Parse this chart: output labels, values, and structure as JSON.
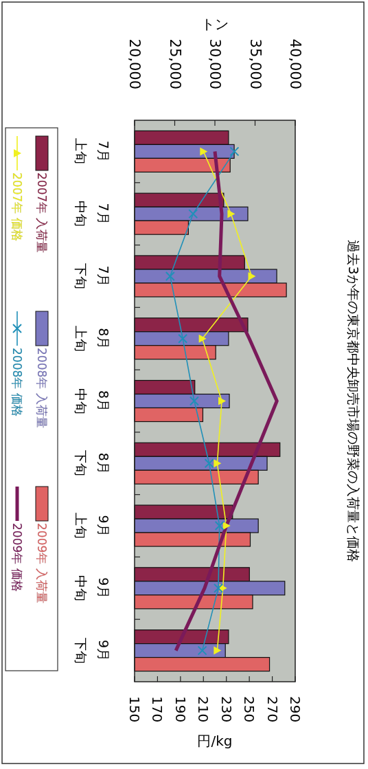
{
  "chart_data": {
    "type": "bar",
    "orientation": "horizontal",
    "title": "過去3か年の東京都中央卸売市場の野菜の入荷量と価格",
    "x2label": "トン",
    "xlabel": "円/kg",
    "categories": [
      "7月上旬",
      "7月中旬",
      "7月下旬",
      "8月上旬",
      "8月中旬",
      "8月下旬",
      "9月上旬",
      "9月中旬",
      "9月下旬"
    ],
    "x2lim": [
      20000,
      40000
    ],
    "x2ticks": [
      {
        "value": 20000,
        "label": "20,000"
      },
      {
        "value": 25000,
        "label": "25,000"
      },
      {
        "value": 30000,
        "label": "30,000"
      },
      {
        "value": 35000,
        "label": "35,000"
      },
      {
        "value": 40000,
        "label": "40,000"
      }
    ],
    "xlim": [
      150,
      290
    ],
    "xticks": [
      150,
      170,
      190,
      210,
      230,
      250,
      270,
      290
    ],
    "grid": false,
    "legend": "left",
    "series": [
      {
        "name": "2007年 入荷量",
        "axis": "x2",
        "color": "#8c2448",
        "values": [
          31700,
          31100,
          33700,
          34100,
          27500,
          38100,
          32200,
          34300,
          31700
        ]
      },
      {
        "name": "2008年 入荷量",
        "axis": "x2",
        "color": "#7b78c0",
        "values": [
          32400,
          34100,
          37700,
          31700,
          31800,
          36500,
          35400,
          38700,
          31300
        ]
      },
      {
        "name": "2009年 入荷量",
        "axis": "x2",
        "color": "#e06464",
        "values": [
          31900,
          26700,
          38900,
          30100,
          28500,
          35400,
          34400,
          34700,
          36800
        ]
      },
      {
        "name": "2007年 価格",
        "type": "line",
        "marker": "triangle",
        "color": "#f0f020",
        "values": [
          210,
          234,
          252,
          209,
          226,
          222,
          230,
          227,
          222
        ]
      },
      {
        "name": "2008年 価格",
        "type": "line",
        "marker": "cross",
        "color": "#2090b8",
        "values": [
          237,
          201,
          181,
          192,
          202,
          215,
          224,
          223,
          209
        ]
      },
      {
        "name": "2009年 価格",
        "type": "line",
        "marker": "none",
        "color": "#7a1a5a",
        "values": [
          220,
          226,
          224,
          250,
          274,
          252,
          230,
          211,
          186
        ]
      }
    ]
  }
}
